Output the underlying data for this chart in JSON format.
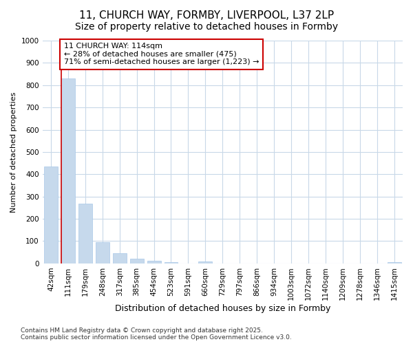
{
  "title": "11, CHURCH WAY, FORMBY, LIVERPOOL, L37 2LP",
  "subtitle": "Size of property relative to detached houses in Formby",
  "xlabel": "Distribution of detached houses by size in Formby",
  "ylabel": "Number of detached properties",
  "categories": [
    "42sqm",
    "111sqm",
    "179sqm",
    "248sqm",
    "317sqm",
    "385sqm",
    "454sqm",
    "523sqm",
    "591sqm",
    "660sqm",
    "729sqm",
    "797sqm",
    "866sqm",
    "934sqm",
    "1003sqm",
    "1072sqm",
    "1140sqm",
    "1209sqm",
    "1278sqm",
    "1346sqm",
    "1415sqm"
  ],
  "values": [
    435,
    830,
    268,
    95,
    47,
    20,
    13,
    7,
    0,
    8,
    0,
    0,
    0,
    0,
    0,
    0,
    0,
    0,
    0,
    0,
    7
  ],
  "bar_color": "#c6d9ec",
  "bar_edge_color": "#a8c8e8",
  "highlight_line_color": "#cc0000",
  "annotation_line1": "11 CHURCH WAY: 114sqm",
  "annotation_line2": "← 28% of detached houses are smaller (475)",
  "annotation_line3": "71% of semi-detached houses are larger (1,223) →",
  "annotation_box_facecolor": "#ffffff",
  "annotation_box_edgecolor": "#cc0000",
  "ylim": [
    0,
    1000
  ],
  "yticks": [
    0,
    100,
    200,
    300,
    400,
    500,
    600,
    700,
    800,
    900,
    1000
  ],
  "background_color": "#ffffff",
  "plot_bg_color": "#ffffff",
  "grid_color": "#c8d8e8",
  "footer_line1": "Contains HM Land Registry data © Crown copyright and database right 2025.",
  "footer_line2": "Contains public sector information licensed under the Open Government Licence v3.0.",
  "title_fontsize": 11,
  "subtitle_fontsize": 10,
  "xlabel_fontsize": 9,
  "ylabel_fontsize": 8,
  "tick_fontsize": 7.5,
  "annotation_fontsize": 8,
  "footer_fontsize": 6.5
}
